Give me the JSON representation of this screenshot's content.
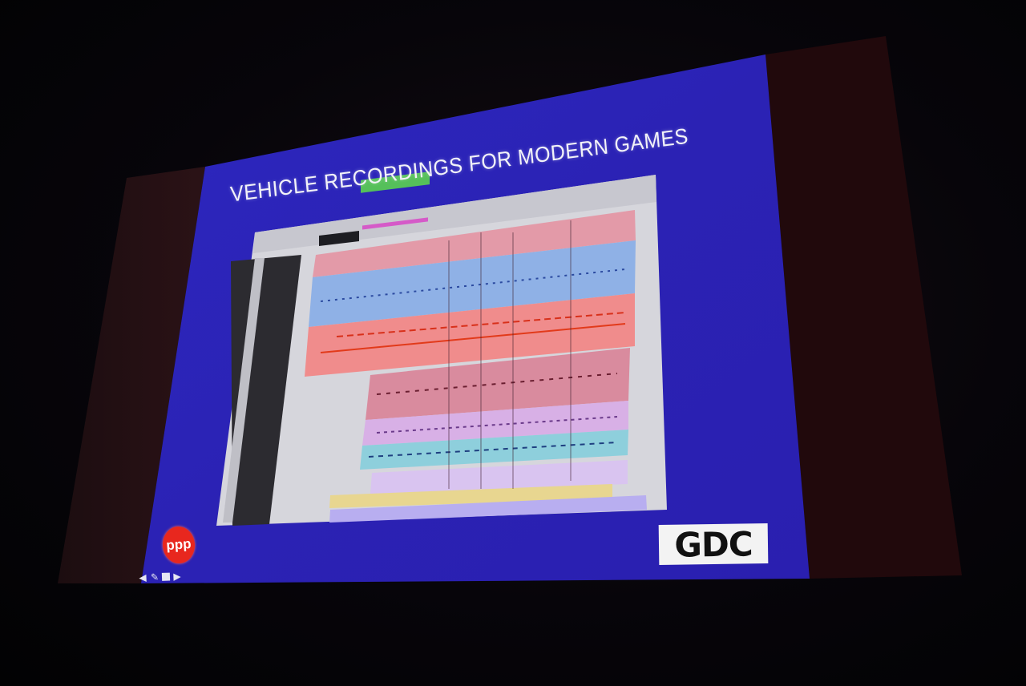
{
  "slide": {
    "title": "VEHICLE RECORDINGS FOR MODERN GAMES",
    "background_color": "#2a22b8",
    "left_logo": {
      "text": "ppp",
      "color": "#e8271e"
    },
    "right_logo": {
      "text": "GDC",
      "background": "#f3f3f3"
    },
    "nav": {
      "prev_icon": "arrow-left-icon",
      "pen_icon": "pen-icon",
      "menu_icon": "square-icon",
      "next_icon": "arrow-right-icon"
    }
  },
  "screenshot": {
    "app": "multitrack audio session",
    "track_group_colors": [
      "#e39aa8",
      "#8fb1e6",
      "#f08c8c",
      "#d98b9e",
      "#d8b0e6",
      "#8ecfdc",
      "#e8d690",
      "#b8aef0"
    ]
  }
}
